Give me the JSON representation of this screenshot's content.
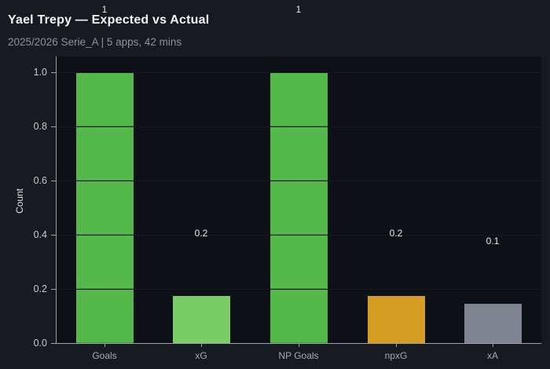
{
  "header": {
    "title": "Yael Trepy — Expected vs Actual",
    "subtitle": "2025/2026 Serie_A | 5 apps, 42 mins"
  },
  "chart_data": {
    "type": "bar",
    "title": "Yael Trepy — Expected vs Actual",
    "subtitle": "2025/2026 Serie_A | 5 apps, 42 mins",
    "xlabel": "",
    "ylabel": "Count",
    "ylim": [
      0.0,
      1.0
    ],
    "yticks": [
      0.0,
      0.2,
      0.4,
      0.6,
      0.8,
      1.0
    ],
    "grid": "horizontal, drawn over bars (darker where crossing bars)",
    "legend": "none",
    "categories": [
      "Goals",
      "xG",
      "NP Goals",
      "npxG",
      "xA"
    ],
    "values": [
      1.0,
      0.175,
      1.0,
      0.175,
      0.145
    ],
    "value_labels": [
      "1",
      "0.2",
      "1",
      "0.2",
      "0.1"
    ],
    "bar_colors": [
      "#54b84a",
      "#7acd66",
      "#54b84a",
      "#d39c23",
      "#7f8590"
    ]
  },
  "colors": {
    "background": "#171a21",
    "plot_background": "#0d1016",
    "axis": "#9aa0a8",
    "gridline": "#151a23",
    "title": "#f3f4f6",
    "subtitle": "#8d929c",
    "y_tick_label": "#c7cad0",
    "x_tick_label": "#a6abb2",
    "value_label": "#e8eaec"
  }
}
